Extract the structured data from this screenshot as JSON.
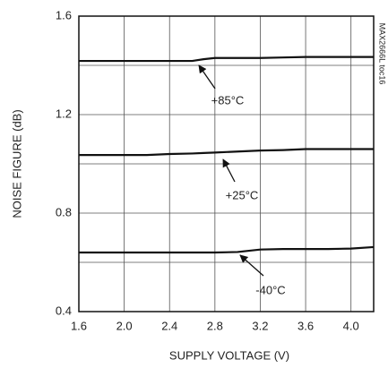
{
  "chart_data": {
    "type": "line",
    "x_label": "SUPPLY VOLTAGE (V)",
    "y_label": "NOISE FIGURE (dB)",
    "side_note": "MAX2666L toc16",
    "x": [
      1.6,
      1.8,
      2.0,
      2.2,
      2.4,
      2.6,
      2.7,
      2.8,
      3.0,
      3.2,
      3.4,
      3.6,
      3.8,
      4.0,
      4.2
    ],
    "series": [
      {
        "name": "+85°C",
        "color": "#111111",
        "values": [
          1.418,
          1.418,
          1.418,
          1.418,
          1.418,
          1.418,
          1.425,
          1.43,
          1.43,
          1.43,
          1.432,
          1.434,
          1.434,
          1.434,
          1.434
        ]
      },
      {
        "name": "+25°C",
        "color": "#111111",
        "values": [
          1.036,
          1.036,
          1.036,
          1.036,
          1.04,
          1.042,
          1.044,
          1.046,
          1.05,
          1.054,
          1.056,
          1.06,
          1.06,
          1.06,
          1.06
        ]
      },
      {
        "name": "-40°C",
        "color": "#111111",
        "values": [
          0.64,
          0.64,
          0.64,
          0.64,
          0.64,
          0.64,
          0.64,
          0.64,
          0.642,
          0.652,
          0.654,
          0.654,
          0.654,
          0.656,
          0.662
        ]
      }
    ],
    "xlim": [
      1.6,
      4.2
    ],
    "xticks": [
      1.6,
      {
        "value": 2,
        "label": "2.0"
      },
      2.4,
      2.8,
      3.2,
      3.6,
      {
        "value": 4,
        "label": "4.0"
      }
    ],
    "ylim": [
      0.4,
      1.6
    ],
    "yticks": [
      0.4,
      0.8,
      1.2,
      1.6
    ],
    "ygrid": [
      0.6,
      1.0,
      1.4
    ],
    "grid": true
  }
}
